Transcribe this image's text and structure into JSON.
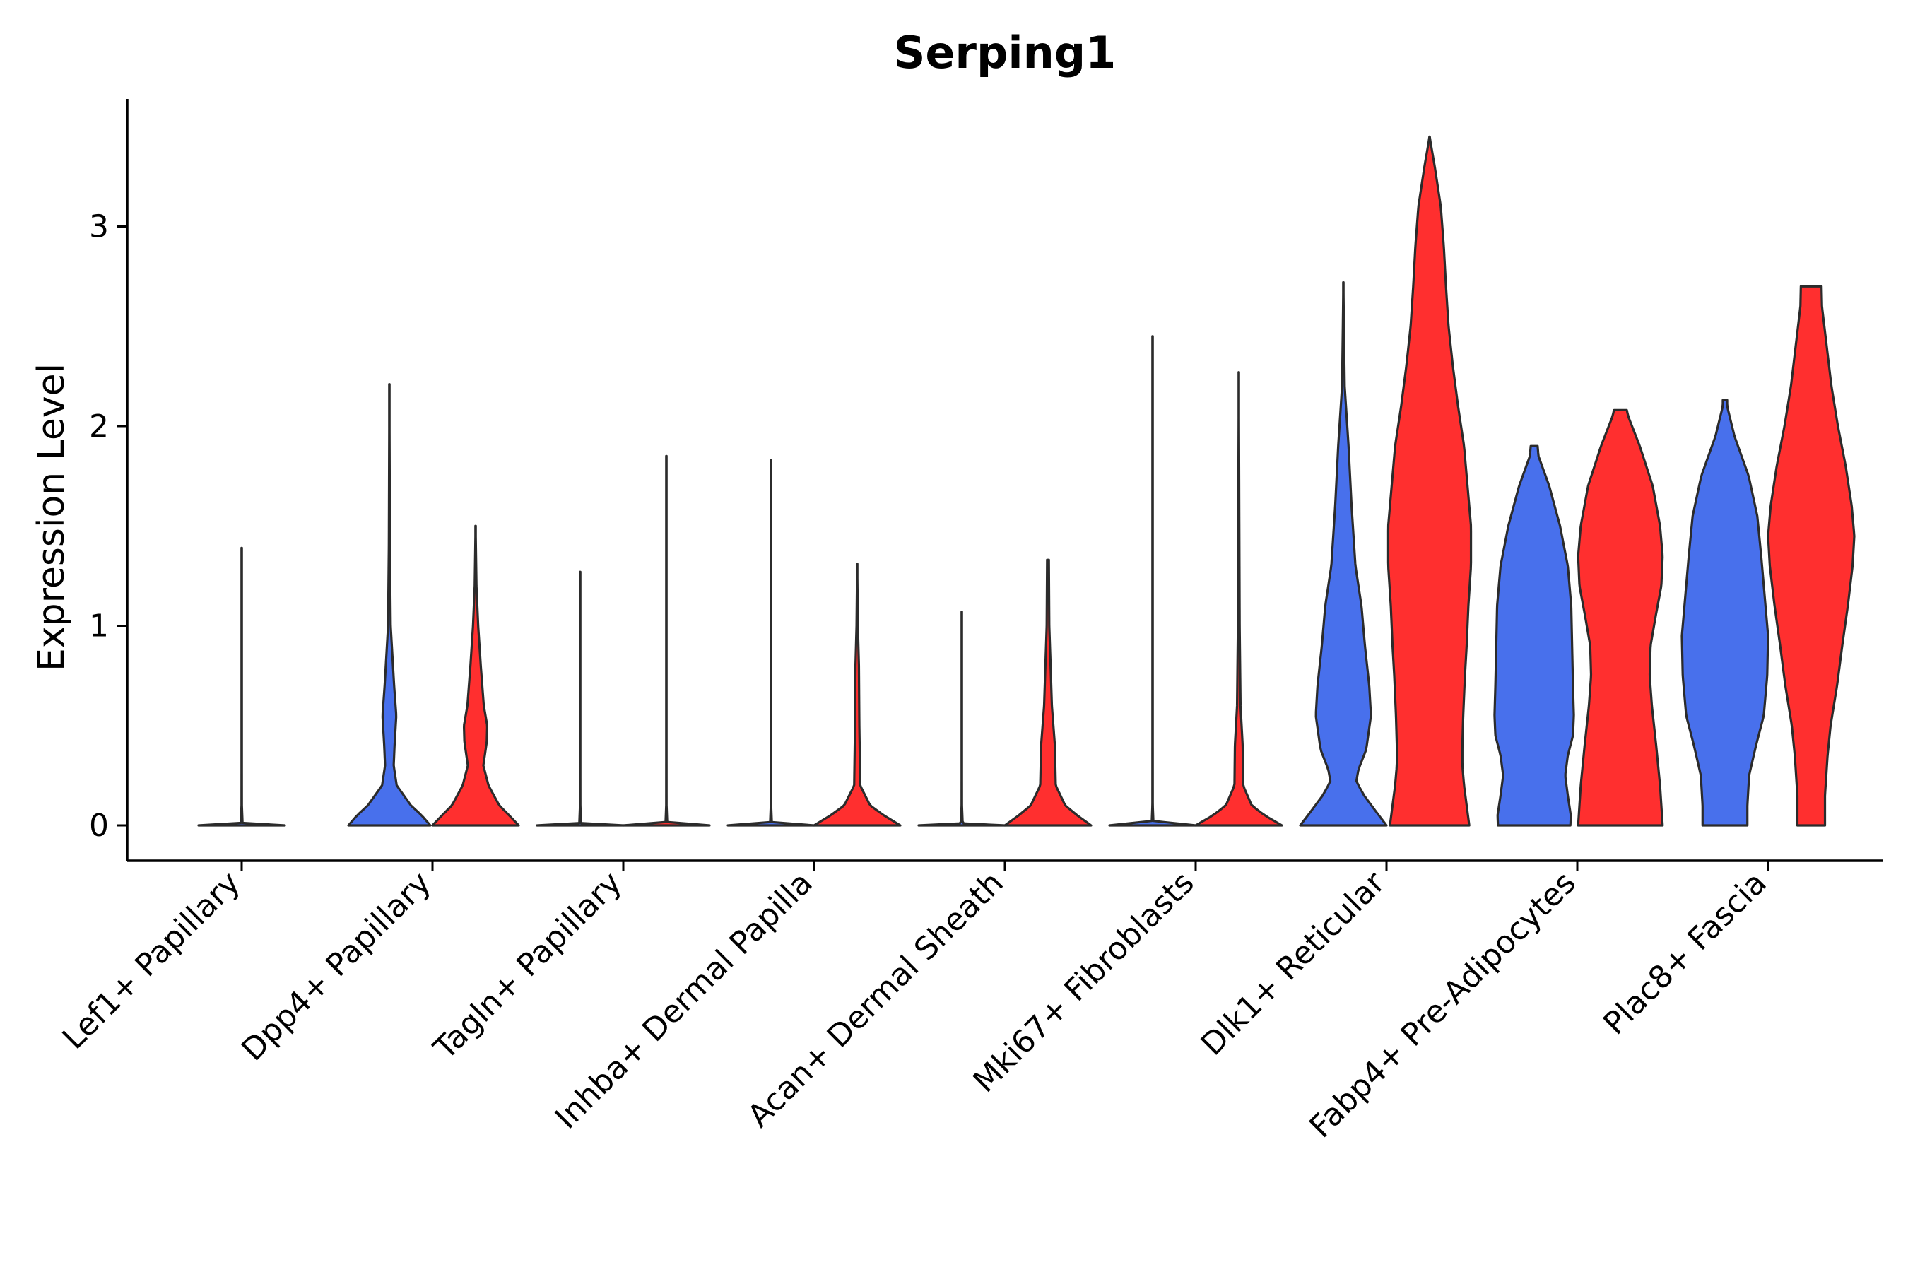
{
  "chart_data": {
    "type": "violin",
    "title": "Serping1",
    "xlabel": "",
    "ylabel": "Expression Level",
    "ylim": [
      -0.17,
      3.63
    ],
    "yticks": [
      0,
      1,
      2,
      3
    ],
    "ytick_labels": [
      "0",
      "1",
      "2",
      "3"
    ],
    "colors": {
      "group1": "#4870EC",
      "group2": "#FF2F2F"
    },
    "categories": [
      "Lef1+ Papillary",
      "Dpp4+ Papillary",
      "Tagln+ Papillary",
      "Inhba+ Dermal Papilla",
      "Acan+ Dermal Sheath",
      "Mki67+ Fibroblasts",
      "Dlk1+ Reticular",
      "Fabp4+ Pre-Adipocytes",
      "Plac8+ Fascia"
    ],
    "series": [
      {
        "name": "group1",
        "violins": [
          {
            "max": 1.39,
            "profile": [
              [
                0,
                1.0
              ],
              [
                0.01,
                0.02
              ],
              [
                0.1,
                0.004
              ],
              [
                1.39,
                0.0
              ]
            ]
          },
          {
            "max": 2.21,
            "profile": [
              [
                0,
                0.95
              ],
              [
                0.05,
                0.75
              ],
              [
                0.1,
                0.5
              ],
              [
                0.2,
                0.17
              ],
              [
                0.3,
                0.1
              ],
              [
                0.4,
                0.12
              ],
              [
                0.55,
                0.16
              ],
              [
                0.7,
                0.11
              ],
              [
                1.0,
                0.03
              ],
              [
                1.4,
                0.012
              ],
              [
                2.21,
                0.0
              ]
            ]
          },
          {
            "max": 1.27,
            "profile": [
              [
                0,
                1.0
              ],
              [
                0.01,
                0.02
              ],
              [
                0.1,
                0.004
              ],
              [
                1.27,
                0.0
              ]
            ]
          },
          {
            "max": 1.83,
            "profile": [
              [
                0,
                1.0
              ],
              [
                0.01,
                0.02
              ],
              [
                0.1,
                0.004
              ],
              [
                1.83,
                0.0
              ]
            ]
          },
          {
            "max": 1.07,
            "profile": [
              [
                0,
                1.0
              ],
              [
                0.01,
                0.02
              ],
              [
                0.1,
                0.004
              ],
              [
                1.07,
                0.0
              ]
            ]
          },
          {
            "max": 2.45,
            "profile": [
              [
                0,
                1.0
              ],
              [
                0.01,
                0.02
              ],
              [
                0.1,
                0.004
              ],
              [
                2.45,
                0.0
              ]
            ]
          },
          {
            "max": 2.72,
            "profile": [
              [
                0,
                1.0
              ],
              [
                0.08,
                0.72
              ],
              [
                0.15,
                0.48
              ],
              [
                0.22,
                0.3
              ],
              [
                0.28,
                0.35
              ],
              [
                0.38,
                0.53
              ],
              [
                0.55,
                0.64
              ],
              [
                0.7,
                0.6
              ],
              [
                0.9,
                0.5
              ],
              [
                1.1,
                0.42
              ],
              [
                1.3,
                0.28
              ],
              [
                1.6,
                0.19
              ],
              [
                1.9,
                0.12
              ],
              [
                2.2,
                0.03
              ],
              [
                2.5,
                0.012
              ],
              [
                2.72,
                0.0
              ]
            ]
          },
          {
            "max": 1.9,
            "profile": [
              [
                0,
                0.84
              ],
              [
                0.05,
                0.85
              ],
              [
                0.15,
                0.78
              ],
              [
                0.25,
                0.72
              ],
              [
                0.35,
                0.78
              ],
              [
                0.45,
                0.9
              ],
              [
                0.55,
                0.92
              ],
              [
                0.7,
                0.9
              ],
              [
                0.9,
                0.88
              ],
              [
                1.1,
                0.86
              ],
              [
                1.3,
                0.78
              ],
              [
                1.5,
                0.6
              ],
              [
                1.7,
                0.35
              ],
              [
                1.85,
                0.1
              ],
              [
                1.9,
                0.08
              ]
            ]
          },
          {
            "max": 2.13,
            "profile": [
              [
                0,
                0.52
              ],
              [
                0.1,
                0.52
              ],
              [
                0.25,
                0.56
              ],
              [
                0.4,
                0.72
              ],
              [
                0.55,
                0.9
              ],
              [
                0.75,
                0.98
              ],
              [
                0.95,
                1.0
              ],
              [
                1.15,
                0.92
              ],
              [
                1.35,
                0.84
              ],
              [
                1.55,
                0.75
              ],
              [
                1.75,
                0.55
              ],
              [
                1.95,
                0.22
              ],
              [
                2.1,
                0.05
              ],
              [
                2.13,
                0.05
              ]
            ]
          }
        ]
      },
      {
        "name": "group2",
        "violins": [
          null,
          {
            "max": 1.5,
            "profile": [
              [
                0,
                1.0
              ],
              [
                0.05,
                0.78
              ],
              [
                0.1,
                0.55
              ],
              [
                0.2,
                0.3
              ],
              [
                0.3,
                0.18
              ],
              [
                0.42,
                0.26
              ],
              [
                0.5,
                0.27
              ],
              [
                0.6,
                0.19
              ],
              [
                0.8,
                0.12
              ],
              [
                1.0,
                0.06
              ],
              [
                1.2,
                0.02
              ],
              [
                1.5,
                0.0
              ]
            ]
          },
          {
            "max": 1.85,
            "profile": [
              [
                0,
                1.0
              ],
              [
                0.01,
                0.02
              ],
              [
                0.1,
                0.004
              ],
              [
                1.85,
                0.0
              ]
            ]
          },
          {
            "max": 1.31,
            "profile": [
              [
                0,
                1.0
              ],
              [
                0.05,
                0.62
              ],
              [
                0.1,
                0.3
              ],
              [
                0.2,
                0.07
              ],
              [
                0.5,
                0.05
              ],
              [
                0.8,
                0.04
              ],
              [
                1.0,
                0.015
              ],
              [
                1.31,
                0.0
              ]
            ]
          },
          {
            "max": 1.33,
            "profile": [
              [
                0,
                1.0
              ],
              [
                0.05,
                0.68
              ],
              [
                0.1,
                0.4
              ],
              [
                0.2,
                0.18
              ],
              [
                0.3,
                0.17
              ],
              [
                0.4,
                0.16
              ],
              [
                0.6,
                0.09
              ],
              [
                0.8,
                0.06
              ],
              [
                1.0,
                0.03
              ],
              [
                1.33,
                0.02
              ]
            ]
          },
          {
            "max": 2.27,
            "profile": [
              [
                0,
                1.0
              ],
              [
                0.05,
                0.6
              ],
              [
                0.1,
                0.3
              ],
              [
                0.2,
                0.1
              ],
              [
                0.4,
                0.09
              ],
              [
                0.6,
                0.04
              ],
              [
                1.0,
                0.02
              ],
              [
                1.6,
                0.01
              ],
              [
                2.27,
                0.0
              ]
            ]
          },
          {
            "max": 3.45,
            "profile": [
              [
                0,
                0.92
              ],
              [
                0.1,
                0.86
              ],
              [
                0.2,
                0.8
              ],
              [
                0.3,
                0.76
              ],
              [
                0.4,
                0.76
              ],
              [
                0.55,
                0.78
              ],
              [
                0.75,
                0.82
              ],
              [
                0.9,
                0.86
              ],
              [
                1.1,
                0.9
              ],
              [
                1.3,
                0.96
              ],
              [
                1.5,
                0.96
              ],
              [
                1.7,
                0.88
              ],
              [
                1.9,
                0.8
              ],
              [
                2.1,
                0.66
              ],
              [
                2.3,
                0.54
              ],
              [
                2.5,
                0.44
              ],
              [
                2.7,
                0.38
              ],
              [
                2.9,
                0.33
              ],
              [
                3.1,
                0.26
              ],
              [
                3.3,
                0.12
              ],
              [
                3.45,
                0.0
              ]
            ]
          },
          {
            "max": 2.08,
            "profile": [
              [
                0,
                0.98
              ],
              [
                0.2,
                0.92
              ],
              [
                0.4,
                0.83
              ],
              [
                0.6,
                0.73
              ],
              [
                0.75,
                0.68
              ],
              [
                0.9,
                0.7
              ],
              [
                1.05,
                0.82
              ],
              [
                1.2,
                0.95
              ],
              [
                1.35,
                0.98
              ],
              [
                1.5,
                0.92
              ],
              [
                1.7,
                0.75
              ],
              [
                1.9,
                0.45
              ],
              [
                2.05,
                0.18
              ],
              [
                2.08,
                0.15
              ]
            ]
          },
          {
            "max": 2.7,
            "profile": [
              [
                0,
                0.32
              ],
              [
                0.15,
                0.32
              ],
              [
                0.35,
                0.38
              ],
              [
                0.5,
                0.45
              ],
              [
                0.7,
                0.6
              ],
              [
                0.9,
                0.72
              ],
              [
                1.1,
                0.85
              ],
              [
                1.3,
                0.96
              ],
              [
                1.45,
                1.0
              ],
              [
                1.6,
                0.94
              ],
              [
                1.8,
                0.8
              ],
              [
                2.0,
                0.62
              ],
              [
                2.2,
                0.47
              ],
              [
                2.4,
                0.36
              ],
              [
                2.6,
                0.25
              ],
              [
                2.7,
                0.24
              ]
            ]
          }
        ]
      }
    ]
  }
}
